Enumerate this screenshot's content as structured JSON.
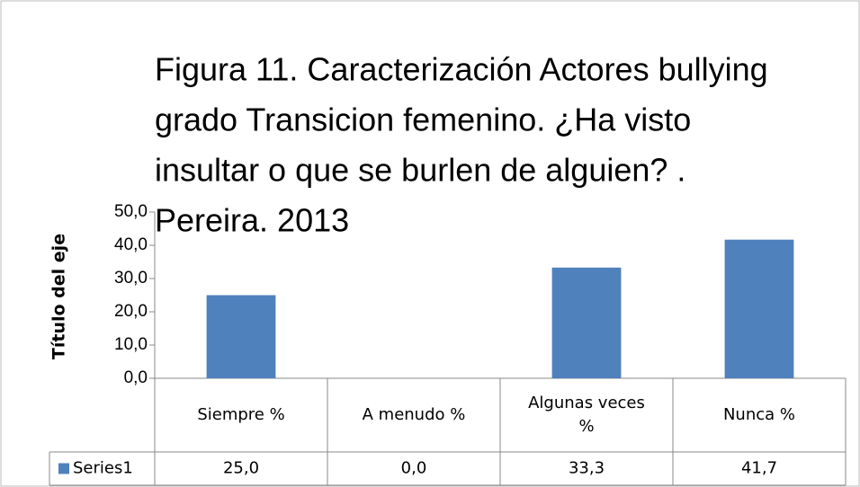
{
  "chart_data": {
    "type": "bar",
    "title": [
      "Figura 11. Caracterización  Actores bullying",
      "grado Transicion femenino.  ¿Ha visto",
      "insultar o que se burlen de alguien? .",
      "Pereira. 2013"
    ],
    "y_axis_title": "Título del eje",
    "categories": [
      [
        "Siempre %"
      ],
      [
        "A menudo %"
      ],
      [
        "Algunas veces",
        "%"
      ],
      [
        "Nunca %"
      ]
    ],
    "series": [
      {
        "name": "Series1",
        "color": "#4f81bd",
        "values": [
          25.0,
          0.0,
          33.3,
          41.7
        ],
        "value_labels": [
          "25,0",
          "0,0",
          "33,3",
          "41,7"
        ]
      }
    ],
    "ylim": [
      0,
      50
    ],
    "yticks": [
      {
        "value": 0,
        "label": "0,0"
      },
      {
        "value": 10,
        "label": "10,0"
      },
      {
        "value": 20,
        "label": "20,0"
      },
      {
        "value": 30,
        "label": "30,0"
      },
      {
        "value": 40,
        "label": "40,0"
      },
      {
        "value": 50,
        "label": "50,0"
      }
    ]
  }
}
